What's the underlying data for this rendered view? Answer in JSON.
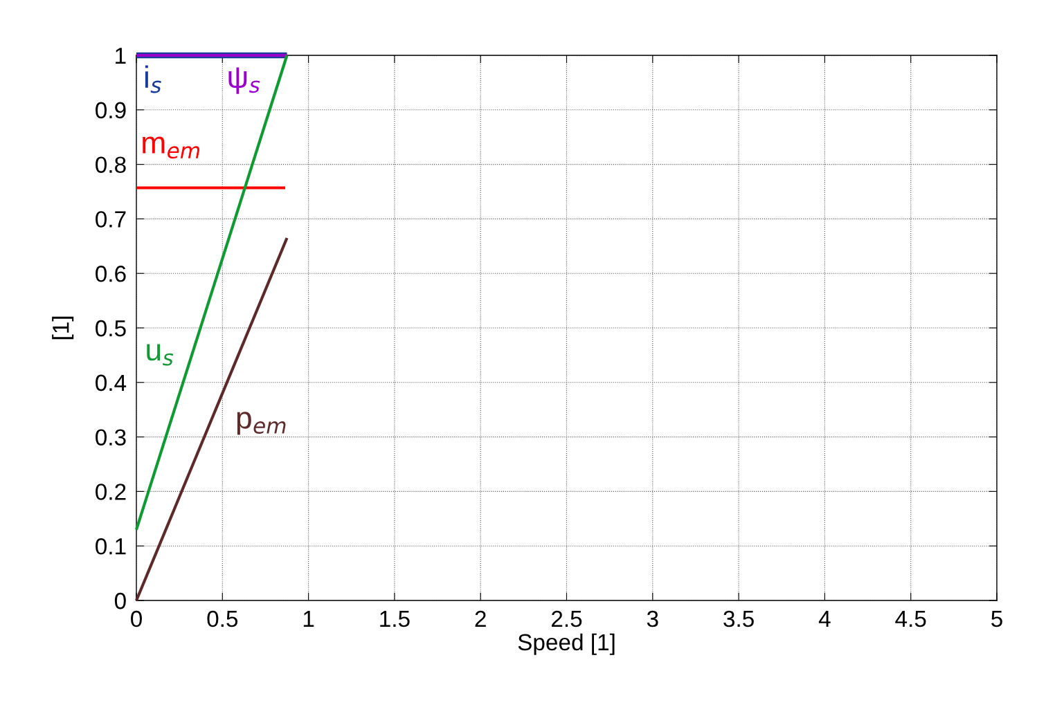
{
  "chart_data": {
    "type": "line",
    "xlabel": "Speed [1]",
    "ylabel": "[1]",
    "xlim": [
      0,
      5
    ],
    "ylim": [
      0,
      1
    ],
    "xticks": [
      0,
      0.5,
      1,
      1.5,
      2,
      2.5,
      3,
      3.5,
      4,
      4.5,
      5
    ],
    "yticks": [
      0,
      0.1,
      0.2,
      0.3,
      0.4,
      0.5,
      0.6,
      0.7,
      0.8,
      0.9,
      1
    ],
    "grid": true,
    "line_style": "solid",
    "marker": "none",
    "series": [
      {
        "name": "i$_{s}$",
        "color": "#1a3a9a",
        "x": [
          0,
          0.875
        ],
        "values": [
          1,
          1
        ]
      },
      {
        "name": "ψ$_{s}$",
        "color": "#9900cc",
        "x": [
          0,
          0.875
        ],
        "values": [
          1,
          1
        ]
      },
      {
        "name": "m$_{em}$",
        "color": "#ff0000",
        "x": [
          0,
          0.865
        ],
        "values": [
          0.757,
          0.757
        ]
      },
      {
        "name": "u$_{s}$",
        "color": "#119933",
        "x": [
          0,
          0.875
        ],
        "values": [
          0.13,
          1
        ]
      },
      {
        "name": "p$_{em}$",
        "color": "#5c2a2a",
        "x": [
          0,
          0.875
        ],
        "values": [
          0,
          0.665
        ]
      }
    ]
  }
}
